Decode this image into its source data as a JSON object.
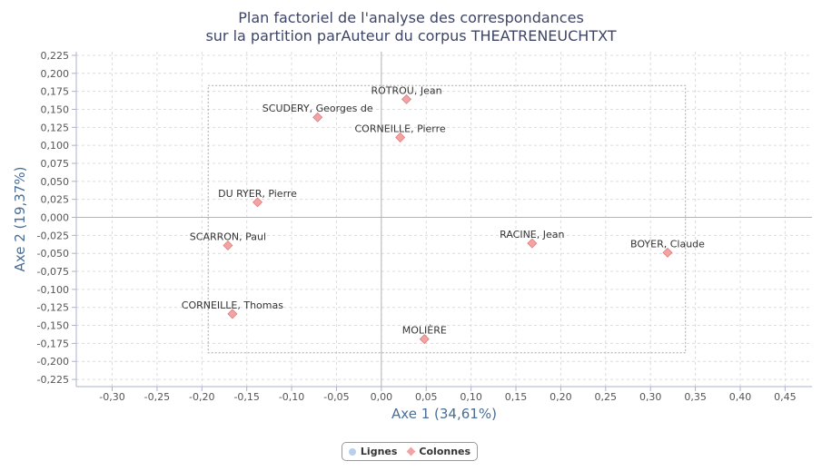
{
  "chart_data": {
    "type": "scatter",
    "title": "Plan factoriel de l'analyse des correspondances",
    "subtitle": "sur la partition parAuteur du corpus THEATRENEUCHTXT",
    "xlabel": "Axe 1 (34,61%)",
    "ylabel": "Axe 2 (19,37%)",
    "xlim": [
      -0.34,
      0.48
    ],
    "ylim": [
      -0.235,
      0.23
    ],
    "x_ticks": [
      "-0,30",
      "-0,25",
      "-0,20",
      "-0,15",
      "-0,10",
      "-0,05",
      "0,00",
      "0,05",
      "0,10",
      "0,15",
      "0,20",
      "0,25",
      "0,30",
      "0,35",
      "0,40",
      "0,45"
    ],
    "y_ticks": [
      "0,225",
      "0,200",
      "0,175",
      "0,150",
      "0,125",
      "0,100",
      "0,075",
      "0,050",
      "0,025",
      "0,000",
      "-0,025",
      "-0,050",
      "-0,075",
      "-0,100",
      "-0,125",
      "-0,150",
      "-0,175",
      "-0,200",
      "-0,225"
    ],
    "grid": true,
    "legend_position": "bottom-center",
    "legend": [
      "Lignes",
      "Colonnes"
    ],
    "series": [
      {
        "name": "Lignes",
        "color": "#b9cfea",
        "points": []
      },
      {
        "name": "Colonnes",
        "color": "#f4a3a3",
        "points": [
          {
            "label": "ROTROU, Jean",
            "x": 0.028,
            "y": 0.164
          },
          {
            "label": "SCUDERY, Georges de",
            "x": -0.071,
            "y": 0.139
          },
          {
            "label": "CORNEILLE, Pierre",
            "x": 0.021,
            "y": 0.111
          },
          {
            "label": "DU RYER, Pierre",
            "x": -0.138,
            "y": 0.021
          },
          {
            "label": "SCARRON, Paul",
            "x": -0.171,
            "y": -0.039
          },
          {
            "label": "RACINE, Jean",
            "x": 0.168,
            "y": -0.036
          },
          {
            "label": "BOYER, Claude",
            "x": 0.319,
            "y": -0.049
          },
          {
            "label": "CORNEILLE, Thomas",
            "x": -0.166,
            "y": -0.134
          },
          {
            "label": "MOLIÈRE",
            "x": 0.048,
            "y": -0.169
          }
        ]
      }
    ],
    "bounding_box": {
      "x_min": -0.193,
      "x_max": 0.339,
      "y_min": -0.188,
      "y_max": 0.183
    }
  }
}
